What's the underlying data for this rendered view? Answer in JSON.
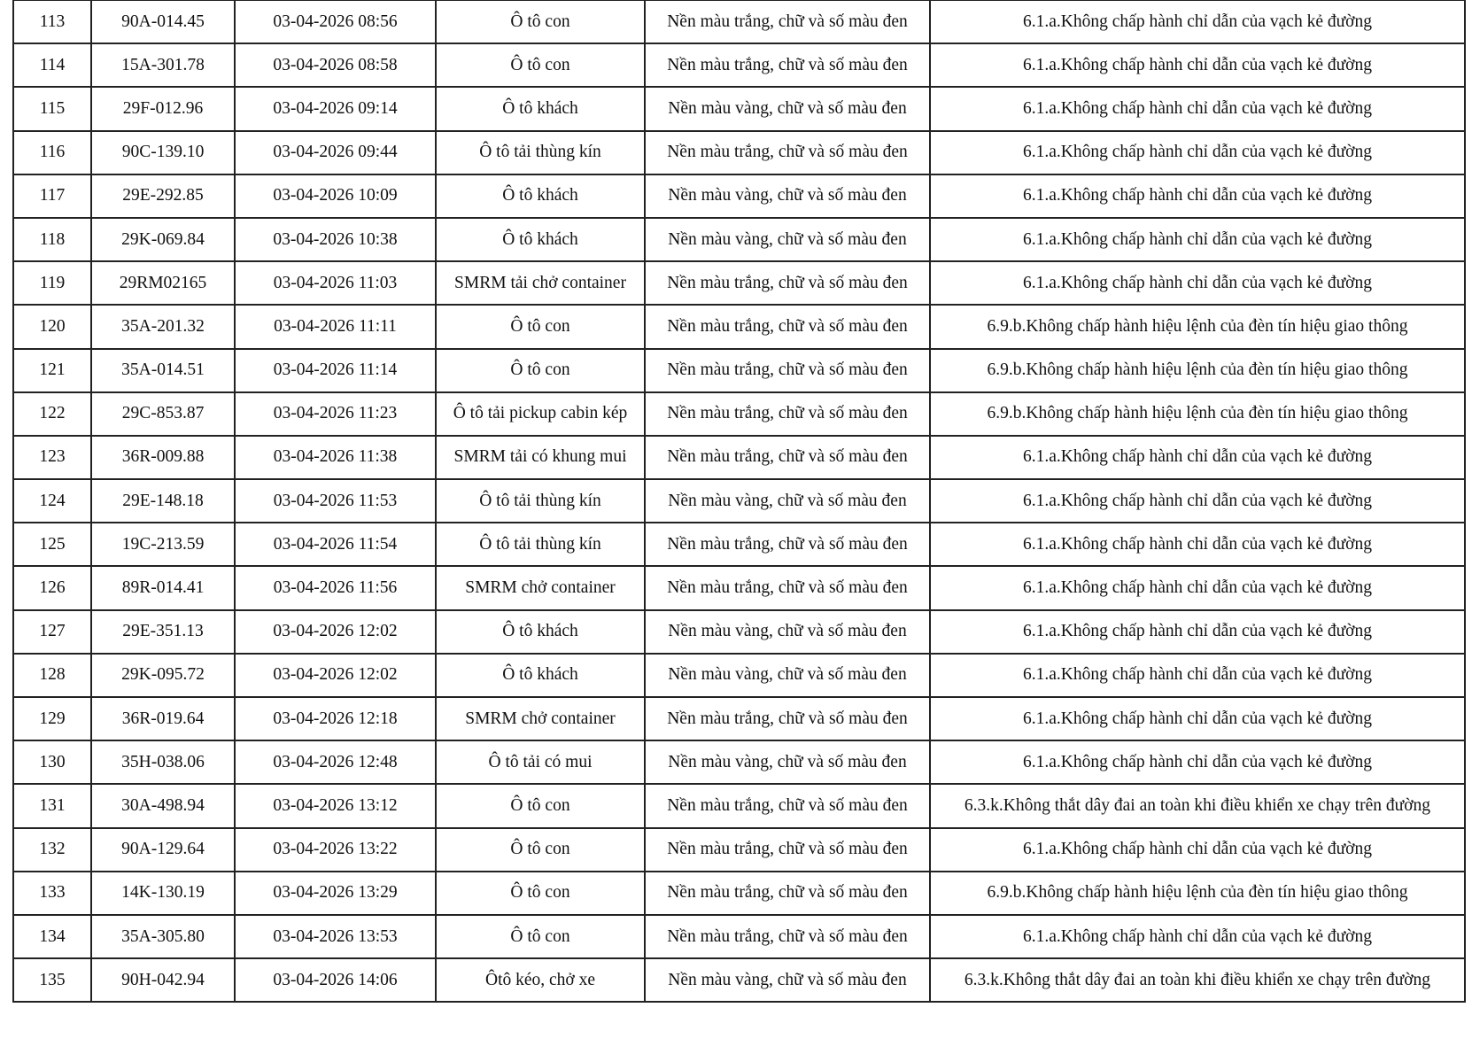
{
  "table": {
    "rows": [
      [
        "113",
        "90A-014.45",
        "03-04-2026 08:56",
        "Ô tô con",
        "Nền màu trắng, chữ và số màu đen",
        "6.1.a.Không chấp hành chỉ dẫn của vạch kẻ đường"
      ],
      [
        "114",
        "15A-301.78",
        "03-04-2026 08:58",
        "Ô tô con",
        "Nền màu trắng, chữ và số màu đen",
        "6.1.a.Không chấp hành chỉ dẫn của vạch kẻ đường"
      ],
      [
        "115",
        "29F-012.96",
        "03-04-2026 09:14",
        "Ô tô khách",
        "Nền màu vàng, chữ và số màu đen",
        "6.1.a.Không chấp hành chỉ dẫn của vạch kẻ đường"
      ],
      [
        "116",
        "90C-139.10",
        "03-04-2026 09:44",
        "Ô tô tải thùng kín",
        "Nền màu trắng, chữ và số màu đen",
        "6.1.a.Không chấp hành chỉ dẫn của vạch kẻ đường"
      ],
      [
        "117",
        "29E-292.85",
        "03-04-2026 10:09",
        "Ô tô khách",
        "Nền màu vàng, chữ và số màu đen",
        "6.1.a.Không chấp hành chỉ dẫn của vạch kẻ đường"
      ],
      [
        "118",
        "29K-069.84",
        "03-04-2026 10:38",
        "Ô tô khách",
        "Nền màu vàng, chữ và số màu đen",
        "6.1.a.Không chấp hành chỉ dẫn của vạch kẻ đường"
      ],
      [
        "119",
        "29RM02165",
        "03-04-2026 11:03",
        "SMRM tải chở container",
        "Nền màu trắng, chữ và số màu đen",
        "6.1.a.Không chấp hành chỉ dẫn của vạch kẻ đường"
      ],
      [
        "120",
        "35A-201.32",
        "03-04-2026 11:11",
        "Ô tô con",
        "Nền màu trắng, chữ và số màu đen",
        "6.9.b.Không chấp hành hiệu lệnh của đèn tín hiệu giao thông"
      ],
      [
        "121",
        "35A-014.51",
        "03-04-2026 11:14",
        "Ô tô con",
        "Nền màu trắng, chữ và số màu đen",
        "6.9.b.Không chấp hành hiệu lệnh của đèn tín hiệu giao thông"
      ],
      [
        "122",
        "29C-853.87",
        "03-04-2026 11:23",
        "Ô tô tải pickup cabin kép",
        "Nền màu trắng, chữ và số màu đen",
        "6.9.b.Không chấp hành hiệu lệnh của đèn tín hiệu giao thông"
      ],
      [
        "123",
        "36R-009.88",
        "03-04-2026 11:38",
        "SMRM tải có khung mui",
        "Nền màu trắng, chữ và số màu đen",
        "6.1.a.Không chấp hành chỉ dẫn của vạch kẻ đường"
      ],
      [
        "124",
        "29E-148.18",
        "03-04-2026 11:53",
        "Ô tô tải thùng kín",
        "Nền màu vàng, chữ và số màu đen",
        "6.1.a.Không chấp hành chỉ dẫn của vạch kẻ đường"
      ],
      [
        "125",
        "19C-213.59",
        "03-04-2026 11:54",
        "Ô tô tải thùng kín",
        "Nền màu trắng, chữ và số màu đen",
        "6.1.a.Không chấp hành chỉ dẫn của vạch kẻ đường"
      ],
      [
        "126",
        "89R-014.41",
        "03-04-2026 11:56",
        "SMRM chở container",
        "Nền màu trắng, chữ và số màu đen",
        "6.1.a.Không chấp hành chỉ dẫn của vạch kẻ đường"
      ],
      [
        "127",
        "29E-351.13",
        "03-04-2026 12:02",
        "Ô tô khách",
        "Nền màu vàng, chữ và số màu đen",
        "6.1.a.Không chấp hành chỉ dẫn của vạch kẻ đường"
      ],
      [
        "128",
        "29K-095.72",
        "03-04-2026 12:02",
        "Ô tô khách",
        "Nền màu vàng, chữ và số màu đen",
        "6.1.a.Không chấp hành chỉ dẫn của vạch kẻ đường"
      ],
      [
        "129",
        "36R-019.64",
        "03-04-2026 12:18",
        "SMRM chở container",
        "Nền màu trắng, chữ và số màu đen",
        "6.1.a.Không chấp hành chỉ dẫn của vạch kẻ đường"
      ],
      [
        "130",
        "35H-038.06",
        "03-04-2026 12:48",
        "Ô tô tải có mui",
        "Nền màu vàng, chữ và số màu đen",
        "6.1.a.Không chấp hành chỉ dẫn của vạch kẻ đường"
      ],
      [
        "131",
        "30A-498.94",
        "03-04-2026 13:12",
        "Ô tô con",
        "Nền màu trắng, chữ và số màu đen",
        "6.3.k.Không thắt dây đai an toàn khi điều khiển xe chạy trên đường"
      ],
      [
        "132",
        "90A-129.64",
        "03-04-2026 13:22",
        "Ô tô con",
        "Nền màu trắng, chữ và số màu đen",
        "6.1.a.Không chấp hành chỉ dẫn của vạch kẻ đường"
      ],
      [
        "133",
        "14K-130.19",
        "03-04-2026 13:29",
        "Ô tô con",
        "Nền màu trắng, chữ và số màu đen",
        "6.9.b.Không chấp hành hiệu lệnh của đèn tín hiệu giao thông"
      ],
      [
        "134",
        "35A-305.80",
        "03-04-2026 13:53",
        "Ô tô con",
        "Nền màu trắng, chữ và số màu đen",
        "6.1.a.Không chấp hành chỉ dẫn của vạch kẻ đường"
      ],
      [
        "135",
        "90H-042.94",
        "03-04-2026 14:06",
        "Ôtô kéo, chở xe",
        "Nền màu vàng, chữ và số màu đen",
        "6.3.k.Không thắt dây đai an toàn khi điều khiển xe chạy trên đường"
      ]
    ]
  }
}
